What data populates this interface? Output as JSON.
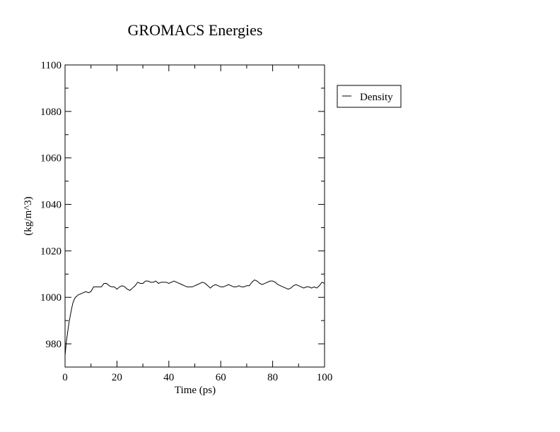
{
  "chart_data": {
    "type": "line",
    "title": "GROMACS Energies",
    "xlabel": "Time (ps)",
    "ylabel": "(kg/m^3)",
    "xlim": [
      0,
      100
    ],
    "ylim": [
      970,
      1100
    ],
    "xticks": [
      0,
      20,
      40,
      60,
      80,
      100
    ],
    "yticks": [
      980,
      1000,
      1020,
      1040,
      1060,
      1080,
      1100
    ],
    "x_minor_step": 10,
    "y_minor_step": 10,
    "grid": false,
    "legend_position": "right-top",
    "series": [
      {
        "name": "Density",
        "color": "#000000",
        "x": [
          0,
          0.5,
          1,
          1.5,
          2,
          2.5,
          3,
          3.5,
          4,
          4.5,
          5,
          6,
          7,
          8,
          9,
          10,
          11,
          12,
          13,
          14,
          15,
          16,
          17,
          18,
          19,
          20,
          21,
          22,
          23,
          24,
          25,
          26,
          27,
          28,
          29,
          30,
          31,
          32,
          33,
          34,
          35,
          36,
          37,
          38,
          39,
          40,
          41,
          42,
          43,
          44,
          45,
          46,
          47,
          48,
          49,
          50,
          51,
          52,
          53,
          54,
          55,
          56,
          57,
          58,
          59,
          60,
          61,
          62,
          63,
          64,
          65,
          66,
          67,
          68,
          69,
          70,
          71,
          72,
          73,
          74,
          75,
          76,
          77,
          78,
          79,
          80,
          81,
          82,
          83,
          84,
          85,
          86,
          87,
          88,
          89,
          90,
          91,
          92,
          93,
          94,
          95,
          96,
          97,
          98,
          99,
          100
        ],
        "y": [
          975,
          981,
          985,
          989,
          992,
          995,
          997.5,
          999,
          1000,
          1000.5,
          1001,
          1001.5,
          1002,
          1002.5,
          1002,
          1002.5,
          1004.5,
          1004.5,
          1004.5,
          1004.5,
          1006,
          1006,
          1005,
          1004.5,
          1004.5,
          1003.5,
          1004.5,
          1005,
          1004.5,
          1003.5,
          1003,
          1004,
          1005,
          1006.5,
          1006,
          1006,
          1007,
          1007,
          1006.5,
          1006.5,
          1007,
          1006,
          1006.5,
          1006.5,
          1006.5,
          1006,
          1006.5,
          1007,
          1006.5,
          1006,
          1005.5,
          1005,
          1004.5,
          1004.5,
          1004.5,
          1005,
          1005.5,
          1006,
          1006.5,
          1006,
          1005,
          1004,
          1005,
          1005.5,
          1005,
          1004.5,
          1004.5,
          1005,
          1005.5,
          1005,
          1004.5,
          1004.5,
          1005,
          1004.5,
          1004.5,
          1005,
          1005,
          1006.5,
          1007.5,
          1007,
          1006,
          1005.5,
          1006,
          1006.5,
          1007,
          1007,
          1006.5,
          1005.5,
          1005,
          1004.5,
          1004,
          1003.5,
          1004,
          1005,
          1005.5,
          1005,
          1004.5,
          1004,
          1004.5,
          1004.5,
          1004,
          1004.5,
          1004,
          1005,
          1006.5,
          1006
        ]
      }
    ]
  }
}
